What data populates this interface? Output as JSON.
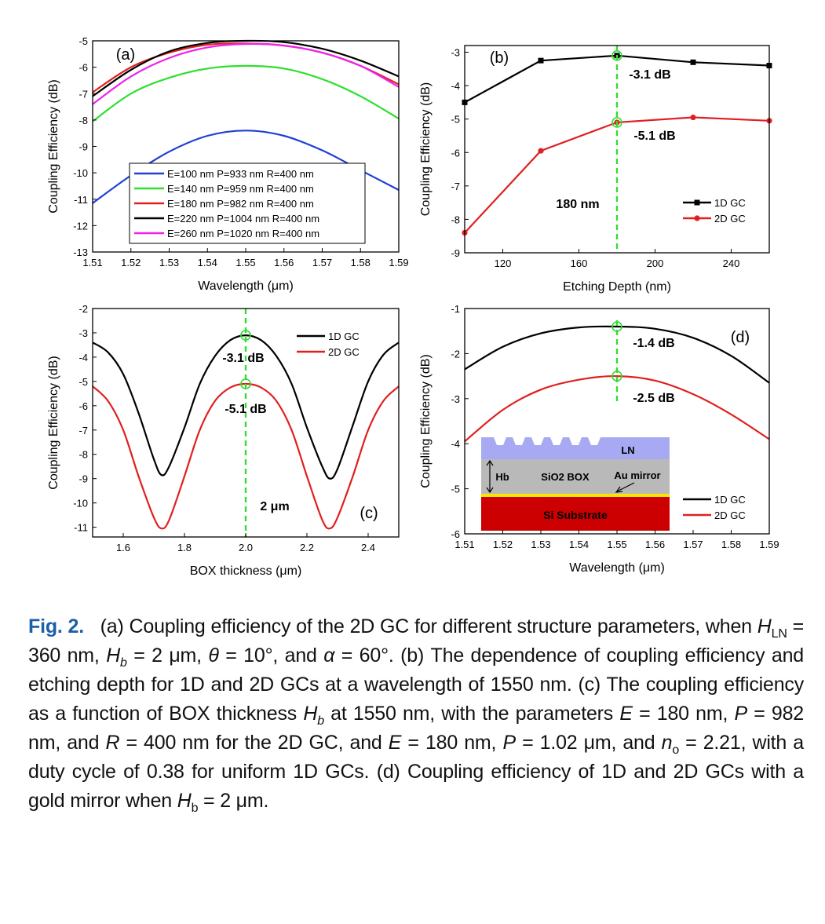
{
  "chart_data": [
    {
      "panel_label": "(a)",
      "type": "line",
      "xlabel": "Wavelength (μm)",
      "ylabel": "Coupling Efficiency (dB)",
      "xlim": [
        1.51,
        1.59
      ],
      "ylim": [
        -13,
        -5
      ],
      "xticks": [
        "1.51",
        "1.52",
        "1.53",
        "1.54",
        "1.55",
        "1.56",
        "1.57",
        "1.58",
        "1.59"
      ],
      "yticks": [
        "-13",
        "-12",
        "-11",
        "-10",
        "-9",
        "-8",
        "-7",
        "-6",
        "-5"
      ],
      "legend_position": "lower-center",
      "series": [
        {
          "name": "E=100 nm  P=933 nm  R=400 nm",
          "color": "#1f3fd6",
          "x": [
            1.51,
            1.52,
            1.53,
            1.54,
            1.55,
            1.56,
            1.57,
            1.58,
            1.59
          ],
          "y": [
            -11.15,
            -10.1,
            -9.2,
            -8.6,
            -8.4,
            -8.6,
            -9.15,
            -9.9,
            -10.65
          ]
        },
        {
          "name": "E=140 nm  P=959 nm  R=400 nm",
          "color": "#2ee02e",
          "x": [
            1.51,
            1.52,
            1.53,
            1.54,
            1.55,
            1.56,
            1.57,
            1.58,
            1.59
          ],
          "y": [
            -8.05,
            -7.0,
            -6.4,
            -6.05,
            -5.95,
            -6.05,
            -6.45,
            -7.1,
            -7.95
          ]
        },
        {
          "name": "E=180 nm  P=982 nm  R=400 nm",
          "color": "#e02020",
          "x": [
            1.51,
            1.52,
            1.53,
            1.54,
            1.55,
            1.56,
            1.57,
            1.58,
            1.59
          ],
          "y": [
            -6.95,
            -6.0,
            -5.45,
            -5.15,
            -5.1,
            -5.18,
            -5.45,
            -5.95,
            -6.65
          ]
        },
        {
          "name": "E=220 nm  P=1004 nm  R=400 nm",
          "color": "#000000",
          "x": [
            1.51,
            1.52,
            1.53,
            1.54,
            1.55,
            1.56,
            1.57,
            1.58,
            1.59
          ],
          "y": [
            -7.1,
            -6.1,
            -5.4,
            -5.08,
            -5.0,
            -5.05,
            -5.3,
            -5.75,
            -6.35
          ]
        },
        {
          "name": "E=260 nm  P=1020 nm  R=400 nm",
          "color": "#ee22ee",
          "x": [
            1.51,
            1.52,
            1.53,
            1.54,
            1.55,
            1.56,
            1.57,
            1.58,
            1.59
          ],
          "y": [
            -7.4,
            -6.35,
            -5.65,
            -5.25,
            -5.12,
            -5.18,
            -5.45,
            -5.95,
            -6.75
          ]
        }
      ]
    },
    {
      "panel_label": "(b)",
      "type": "line",
      "xlabel": "Etching Depth (nm)",
      "ylabel": "Coupling Efficiency (dB)",
      "xlim": [
        100,
        260
      ],
      "ylim": [
        -9,
        -2.8
      ],
      "xticks": [
        "120",
        "160",
        "200",
        "240"
      ],
      "yticks": [
        "-9",
        "-8",
        "-7",
        "-6",
        "-5",
        "-4",
        "-3"
      ],
      "legend_position": "lower-right",
      "markers": true,
      "series": [
        {
          "name": "1D GC",
          "color": "#000000",
          "marker": "square",
          "x": [
            100,
            140,
            180,
            220,
            260
          ],
          "y": [
            -4.5,
            -3.25,
            -3.1,
            -3.3,
            -3.4
          ]
        },
        {
          "name": "2D GC",
          "color": "#e02020",
          "marker": "circle",
          "x": [
            100,
            140,
            180,
            220,
            260
          ],
          "y": [
            -8.4,
            -5.95,
            -5.1,
            -4.95,
            -5.05
          ]
        }
      ],
      "vline": 180,
      "highlight_points": [
        {
          "x": 180,
          "y": -3.1
        },
        {
          "x": 180,
          "y": -5.1
        }
      ],
      "annotations": [
        "-3.1 dB",
        "-5.1 dB",
        "180 nm"
      ]
    },
    {
      "panel_label": "(c)",
      "type": "line",
      "xlabel": "BOX thickness (μm)",
      "ylabel": "Coupling Efficiency (dB)",
      "xlim": [
        1.5,
        2.5
      ],
      "ylim": [
        -11.4,
        -2
      ],
      "xticks": [
        "1.6",
        "1.8",
        "2.0",
        "2.2",
        "2.4"
      ],
      "yticks": [
        "-11",
        "-10",
        "-9",
        "-8",
        "-7",
        "-6",
        "-5",
        "-4",
        "-3",
        "-2"
      ],
      "legend_position": "top-right",
      "series": [
        {
          "name": "1D GC",
          "color": "#000000",
          "x": [
            1.5,
            1.55,
            1.6,
            1.65,
            1.7,
            1.725,
            1.75,
            1.8,
            1.85,
            1.9,
            1.95,
            2.0,
            2.05,
            2.1,
            2.15,
            2.2,
            2.25,
            2.275,
            2.3,
            2.35,
            2.4,
            2.45,
            2.5
          ],
          "y": [
            -3.4,
            -3.8,
            -4.7,
            -6.3,
            -8.2,
            -8.85,
            -8.5,
            -6.9,
            -5.1,
            -3.95,
            -3.3,
            -3.1,
            -3.3,
            -3.95,
            -5.1,
            -6.9,
            -8.5,
            -9.0,
            -8.6,
            -6.8,
            -5.0,
            -3.9,
            -3.4
          ]
        },
        {
          "name": "2D GC",
          "color": "#e02020",
          "x": [
            1.5,
            1.55,
            1.6,
            1.65,
            1.7,
            1.725,
            1.75,
            1.8,
            1.85,
            1.9,
            1.95,
            2.0,
            2.05,
            2.1,
            2.15,
            2.2,
            2.25,
            2.275,
            2.3,
            2.35,
            2.4,
            2.45,
            2.5
          ],
          "y": [
            -5.2,
            -5.8,
            -7.0,
            -8.9,
            -10.6,
            -11.05,
            -10.7,
            -8.9,
            -7.0,
            -5.8,
            -5.25,
            -5.1,
            -5.25,
            -5.8,
            -7.0,
            -8.9,
            -10.7,
            -11.05,
            -10.6,
            -8.9,
            -7.0,
            -5.8,
            -5.2
          ]
        }
      ],
      "vline": 2.0,
      "highlight_points": [
        {
          "x": 2.0,
          "y": -3.1
        },
        {
          "x": 2.0,
          "y": -5.1
        }
      ],
      "annotations": [
        "-3.1 dB",
        "-5.1 dB",
        "2 μm"
      ]
    },
    {
      "panel_label": "(d)",
      "type": "line",
      "xlabel": "Wavelength (μm)",
      "ylabel": "Coupling Efficiency (dB)",
      "xlim": [
        1.51,
        1.59
      ],
      "ylim": [
        -6,
        -1
      ],
      "xticks": [
        "1.51",
        "1.52",
        "1.53",
        "1.54",
        "1.55",
        "1.56",
        "1.57",
        "1.58",
        "1.59"
      ],
      "yticks": [
        "-6",
        "-5",
        "-4",
        "-3",
        "-2",
        "-1"
      ],
      "legend_position": "lower-right",
      "series": [
        {
          "name": "1D GC",
          "color": "#000000",
          "x": [
            1.51,
            1.52,
            1.53,
            1.54,
            1.55,
            1.56,
            1.57,
            1.58,
            1.59
          ],
          "y": [
            -2.35,
            -1.85,
            -1.55,
            -1.42,
            -1.4,
            -1.45,
            -1.65,
            -2.05,
            -2.65
          ]
        },
        {
          "name": "2D GC",
          "color": "#e02020",
          "x": [
            1.51,
            1.52,
            1.53,
            1.54,
            1.55,
            1.56,
            1.57,
            1.58,
            1.59
          ],
          "y": [
            -3.95,
            -3.25,
            -2.8,
            -2.58,
            -2.5,
            -2.6,
            -2.9,
            -3.35,
            -3.9
          ]
        }
      ],
      "vline": 1.55,
      "highlight_points": [
        {
          "x": 1.55,
          "y": -1.4
        },
        {
          "x": 1.55,
          "y": -2.5
        }
      ],
      "annotations": [
        "-1.4 dB",
        "-2.5 dB"
      ],
      "inset_labels": {
        "ln": "LN",
        "hb": "Hb",
        "box": "SiO2 BOX",
        "mirror": "Au mirror",
        "substrate": "Si Substrate"
      }
    }
  ],
  "caption": {
    "label": "Fig. 2.",
    "text": "(a) Coupling efficiency of the 2D GC for different structure parameters, when H_LN = 360 nm, H_b = 2 μm, θ = 10°, and α = 60°. (b) The dependence of coupling efficiency and etching depth for 1D and 2D GCs at a wavelength of 1550 nm. (c) The coupling efficiency as a function of BOX thickness H_b at 1550 nm, with the parameters E = 180 nm, P = 982 nm, and R = 400 nm for the 2D GC, and E = 180 nm, P = 1.02 μm, and n_o = 2.21, with a duty cycle of 0.38 for uniform 1D GCs. (d) Coupling efficiency of 1D and 2D GCs with a gold mirror when H_b = 2 μm."
  }
}
